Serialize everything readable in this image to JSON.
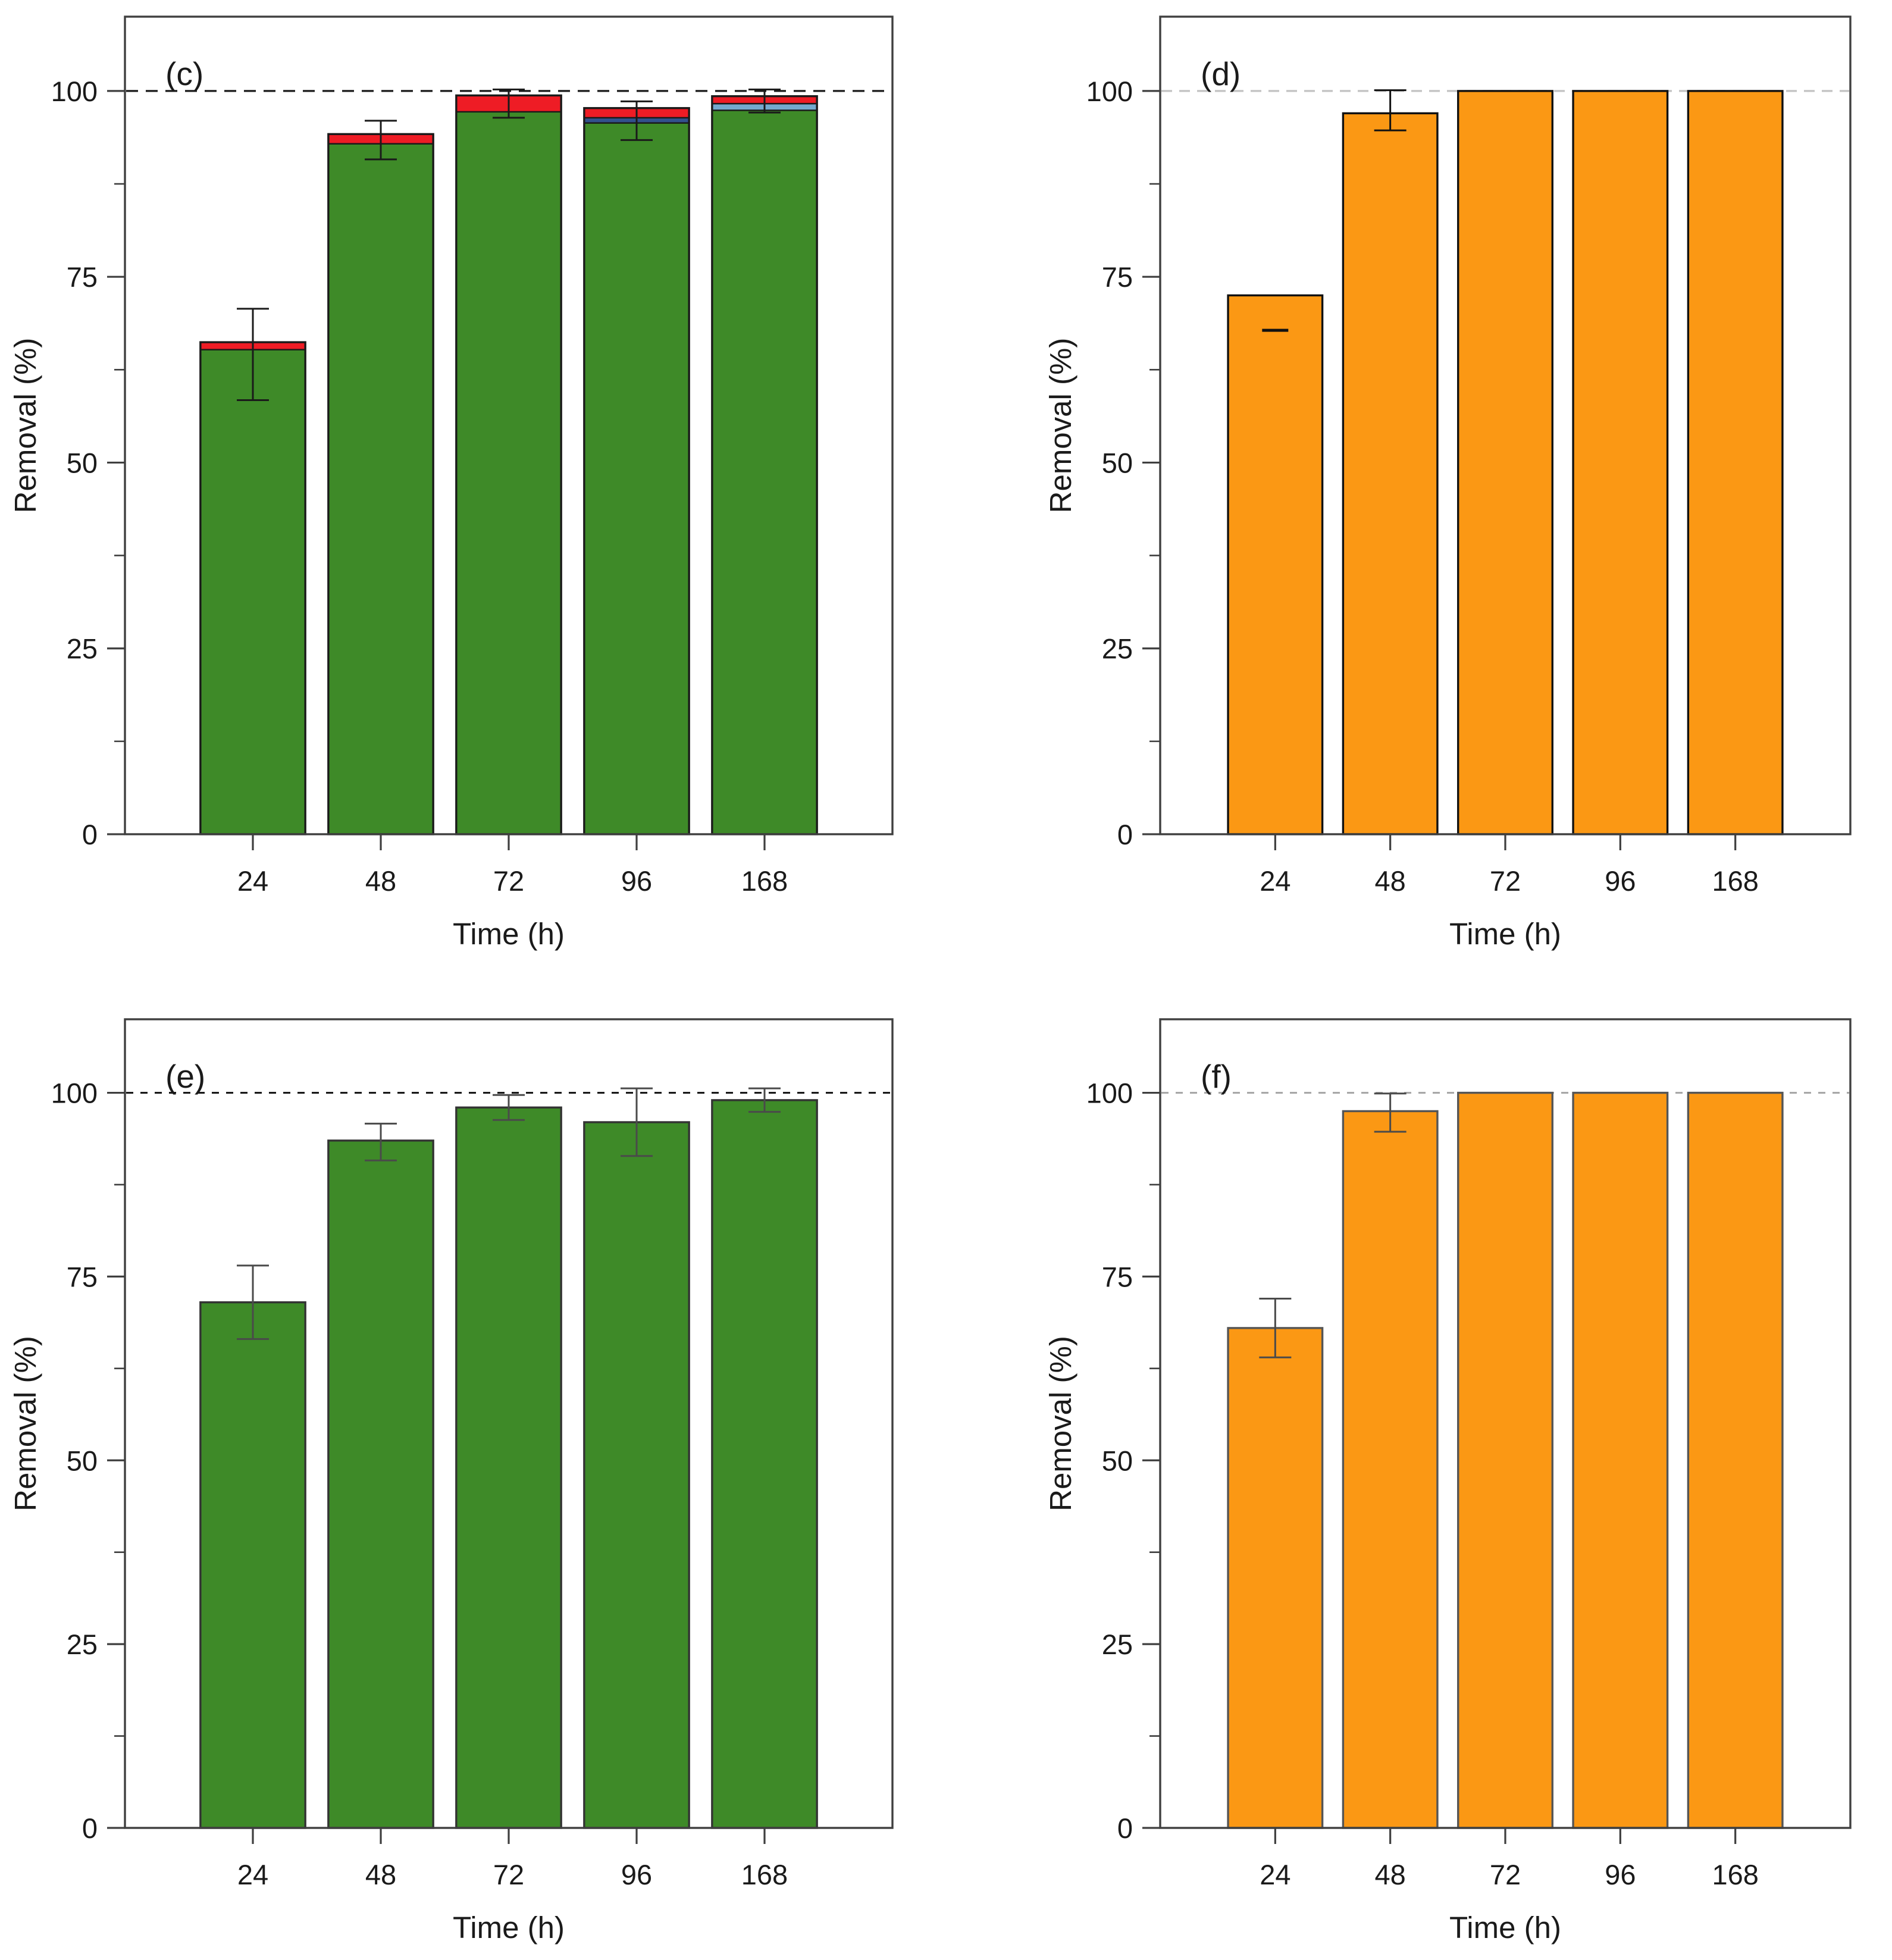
{
  "figure": {
    "background": "#ffffff",
    "axis_color": "#3f3f3f",
    "text_color": "#1a1a1a",
    "panels": [
      "c",
      "d",
      "e",
      "f"
    ]
  },
  "chart_data": [
    {
      "panel_label": "(c)",
      "type": "bar",
      "stacked": true,
      "categories": [
        "24",
        "48",
        "72",
        "96",
        "168"
      ],
      "xlabel": "Time (h)",
      "ylabel": "Removal (%)",
      "ylim": [
        0,
        110
      ],
      "yticks_major": [
        0,
        25,
        50,
        75,
        100
      ],
      "yticks_minor": [
        12.5,
        37.5,
        62.5,
        87.5
      ],
      "ref_line": {
        "y": 100,
        "color": "#1a1a1a",
        "dash": "20 13"
      },
      "bar_stroke": "#1a1a1a",
      "error_color": "#1a1a1a",
      "legend": null,
      "bars": [
        {
          "category": "24",
          "segments": [
            {
              "color": "#3E8A28",
              "value": 65.2
            },
            {
              "color": "#EE1C25",
              "value": 1.0
            }
          ],
          "error": {
            "plus": 4.5,
            "minus": 7.8
          }
        },
        {
          "category": "48",
          "segments": [
            {
              "color": "#3E8A28",
              "value": 92.9
            },
            {
              "color": "#EE1C25",
              "value": 1.3
            }
          ],
          "error": {
            "plus": 1.8,
            "minus": 3.4
          }
        },
        {
          "category": "72",
          "segments": [
            {
              "color": "#3E8A28",
              "value": 97.2
            },
            {
              "color": "#EE1C25",
              "value": 2.2
            }
          ],
          "error": {
            "plus": 0.8,
            "minus": 3.0
          }
        },
        {
          "category": "96",
          "segments": [
            {
              "color": "#3E8A28",
              "value": 95.7
            },
            {
              "color": "#32518D",
              "value": 0.7
            },
            {
              "color": "#EE1C25",
              "value": 1.3
            }
          ],
          "error": {
            "plus": 0.9,
            "minus": 4.3
          }
        },
        {
          "category": "168",
          "segments": [
            {
              "color": "#3E8A28",
              "value": 97.4
            },
            {
              "color": "#74AACF",
              "value": 0.9
            },
            {
              "color": "#EE1C25",
              "value": 1.0
            }
          ],
          "error": {
            "plus": 0.9,
            "minus": 2.2
          }
        }
      ]
    },
    {
      "panel_label": "(d)",
      "type": "bar",
      "stacked": false,
      "categories": [
        "24",
        "48",
        "72",
        "96",
        "168"
      ],
      "xlabel": "Time (h)",
      "ylabel": "Removal (%)",
      "ylim": [
        0,
        110
      ],
      "yticks_major": [
        0,
        25,
        50,
        75,
        100
      ],
      "yticks_minor": [
        12.5,
        37.5,
        62.5,
        87.5
      ],
      "ref_line": {
        "y": 100,
        "color": "#c2c2c2",
        "dash": "18 12"
      },
      "bar_stroke": "#111111",
      "error_color": "#111111",
      "legend": null,
      "bars": [
        {
          "category": "24",
          "segments": [
            {
              "color": "#FB9814",
              "value": 72.5
            }
          ],
          "error": {
            "plus": 0,
            "minus": 4.7,
            "style": "cap-only-lower"
          }
        },
        {
          "category": "48",
          "segments": [
            {
              "color": "#FB9814",
              "value": 97.0
            }
          ],
          "error": {
            "plus": 3.1,
            "minus": 2.3
          }
        },
        {
          "category": "72",
          "segments": [
            {
              "color": "#FB9814",
              "value": 100.0
            }
          ],
          "error": null
        },
        {
          "category": "96",
          "segments": [
            {
              "color": "#FB9814",
              "value": 100.0
            }
          ],
          "error": null
        },
        {
          "category": "168",
          "segments": [
            {
              "color": "#FB9814",
              "value": 100.0
            }
          ],
          "error": null
        }
      ]
    },
    {
      "panel_label": "(e)",
      "type": "bar",
      "stacked": false,
      "categories": [
        "24",
        "48",
        "72",
        "96",
        "168"
      ],
      "xlabel": "Time (h)",
      "ylabel": "Removal (%)",
      "ylim": [
        0,
        110
      ],
      "yticks_major": [
        0,
        25,
        50,
        75,
        100
      ],
      "yticks_minor": [
        12.5,
        37.5,
        62.5,
        87.5
      ],
      "ref_line": {
        "y": 100,
        "color": "#1a1a1a",
        "dash": "12 12"
      },
      "bar_stroke": "#333333",
      "error_color": "#4a4a4a",
      "legend": null,
      "bars": [
        {
          "category": "24",
          "segments": [
            {
              "color": "#3E8A28",
              "value": 71.5
            }
          ],
          "error": {
            "plus": 5.0,
            "minus": 5.0
          }
        },
        {
          "category": "48",
          "segments": [
            {
              "color": "#3E8A28",
              "value": 93.5
            }
          ],
          "error": {
            "plus": 2.3,
            "minus": 2.7
          }
        },
        {
          "category": "72",
          "segments": [
            {
              "color": "#3E8A28",
              "value": 98.0
            }
          ],
          "error": {
            "plus": 1.7,
            "minus": 1.7
          }
        },
        {
          "category": "96",
          "segments": [
            {
              "color": "#3E8A28",
              "value": 96.0
            }
          ],
          "error": {
            "plus": 4.6,
            "minus": 4.6
          }
        },
        {
          "category": "168",
          "segments": [
            {
              "color": "#3E8A28",
              "value": 99.0
            }
          ],
          "error": {
            "plus": 1.6,
            "minus": 1.6
          }
        }
      ]
    },
    {
      "panel_label": "(f)",
      "type": "bar",
      "stacked": false,
      "categories": [
        "24",
        "48",
        "72",
        "96",
        "168"
      ],
      "xlabel": "Time (h)",
      "ylabel": "Removal (%)",
      "ylim": [
        0,
        110
      ],
      "yticks_major": [
        0,
        25,
        50,
        75,
        100
      ],
      "yticks_minor": [
        12.5,
        37.5,
        62.5,
        87.5
      ],
      "ref_line": {
        "y": 100,
        "color": "#a8a8a8",
        "dash": "12 12"
      },
      "bar_stroke": "#555555",
      "error_color": "#4a4a4a",
      "legend": null,
      "bars": [
        {
          "category": "24",
          "segments": [
            {
              "color": "#FB9814",
              "value": 68.0
            }
          ],
          "error": {
            "plus": 4.0,
            "minus": 4.0
          }
        },
        {
          "category": "48",
          "segments": [
            {
              "color": "#FB9814",
              "value": 97.5
            }
          ],
          "error": {
            "plus": 2.4,
            "minus": 2.8
          }
        },
        {
          "category": "72",
          "segments": [
            {
              "color": "#FB9814",
              "value": 100.0
            }
          ],
          "error": null
        },
        {
          "category": "96",
          "segments": [
            {
              "color": "#FB9814",
              "value": 100.0
            }
          ],
          "error": null
        },
        {
          "category": "168",
          "segments": [
            {
              "color": "#FB9814",
              "value": 100.0
            }
          ],
          "error": null
        }
      ]
    }
  ]
}
